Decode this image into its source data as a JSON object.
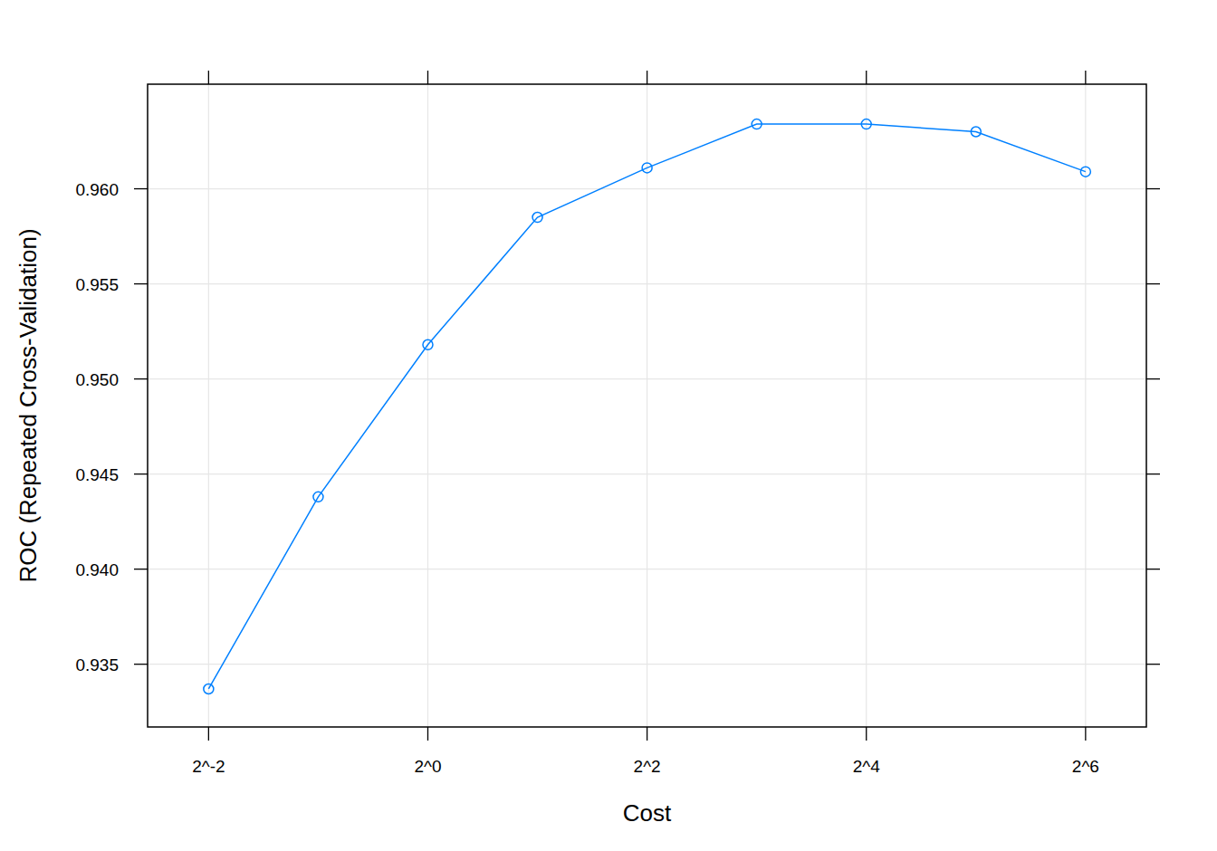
{
  "chart_data": {
    "type": "line",
    "x_label": "Cost",
    "y_label": "ROC (Repeated Cross-Validation)",
    "x": [
      0.25,
      0.5,
      1,
      2,
      4,
      8,
      16,
      32,
      64
    ],
    "series": [
      {
        "color": "#0080ff",
        "marker": "circle",
        "line_style": "solid",
        "values": [
          0.9337,
          0.9438,
          0.9518,
          0.9585,
          0.9611,
          0.9634,
          0.9634,
          0.963,
          0.9609
        ]
      }
    ],
    "log": "x",
    "xlim": [
      0.17,
      94
    ],
    "ylim": [
      0.9317,
      0.9655
    ],
    "xticks": [
      {
        "value": 0.25,
        "label": "2^-2"
      },
      {
        "value": 1,
        "label": "2^0"
      },
      {
        "value": 4,
        "label": "2^2"
      },
      {
        "value": 16,
        "label": "2^4"
      },
      {
        "value": 64,
        "label": "2^6"
      }
    ],
    "yticks": [
      0.935,
      {
        "value": 0.94,
        "label": "0.940"
      },
      0.945,
      {
        "value": 0.95,
        "label": "0.950"
      },
      0.955,
      {
        "value": 0.96,
        "label": "0.960"
      }
    ],
    "grid": true
  }
}
